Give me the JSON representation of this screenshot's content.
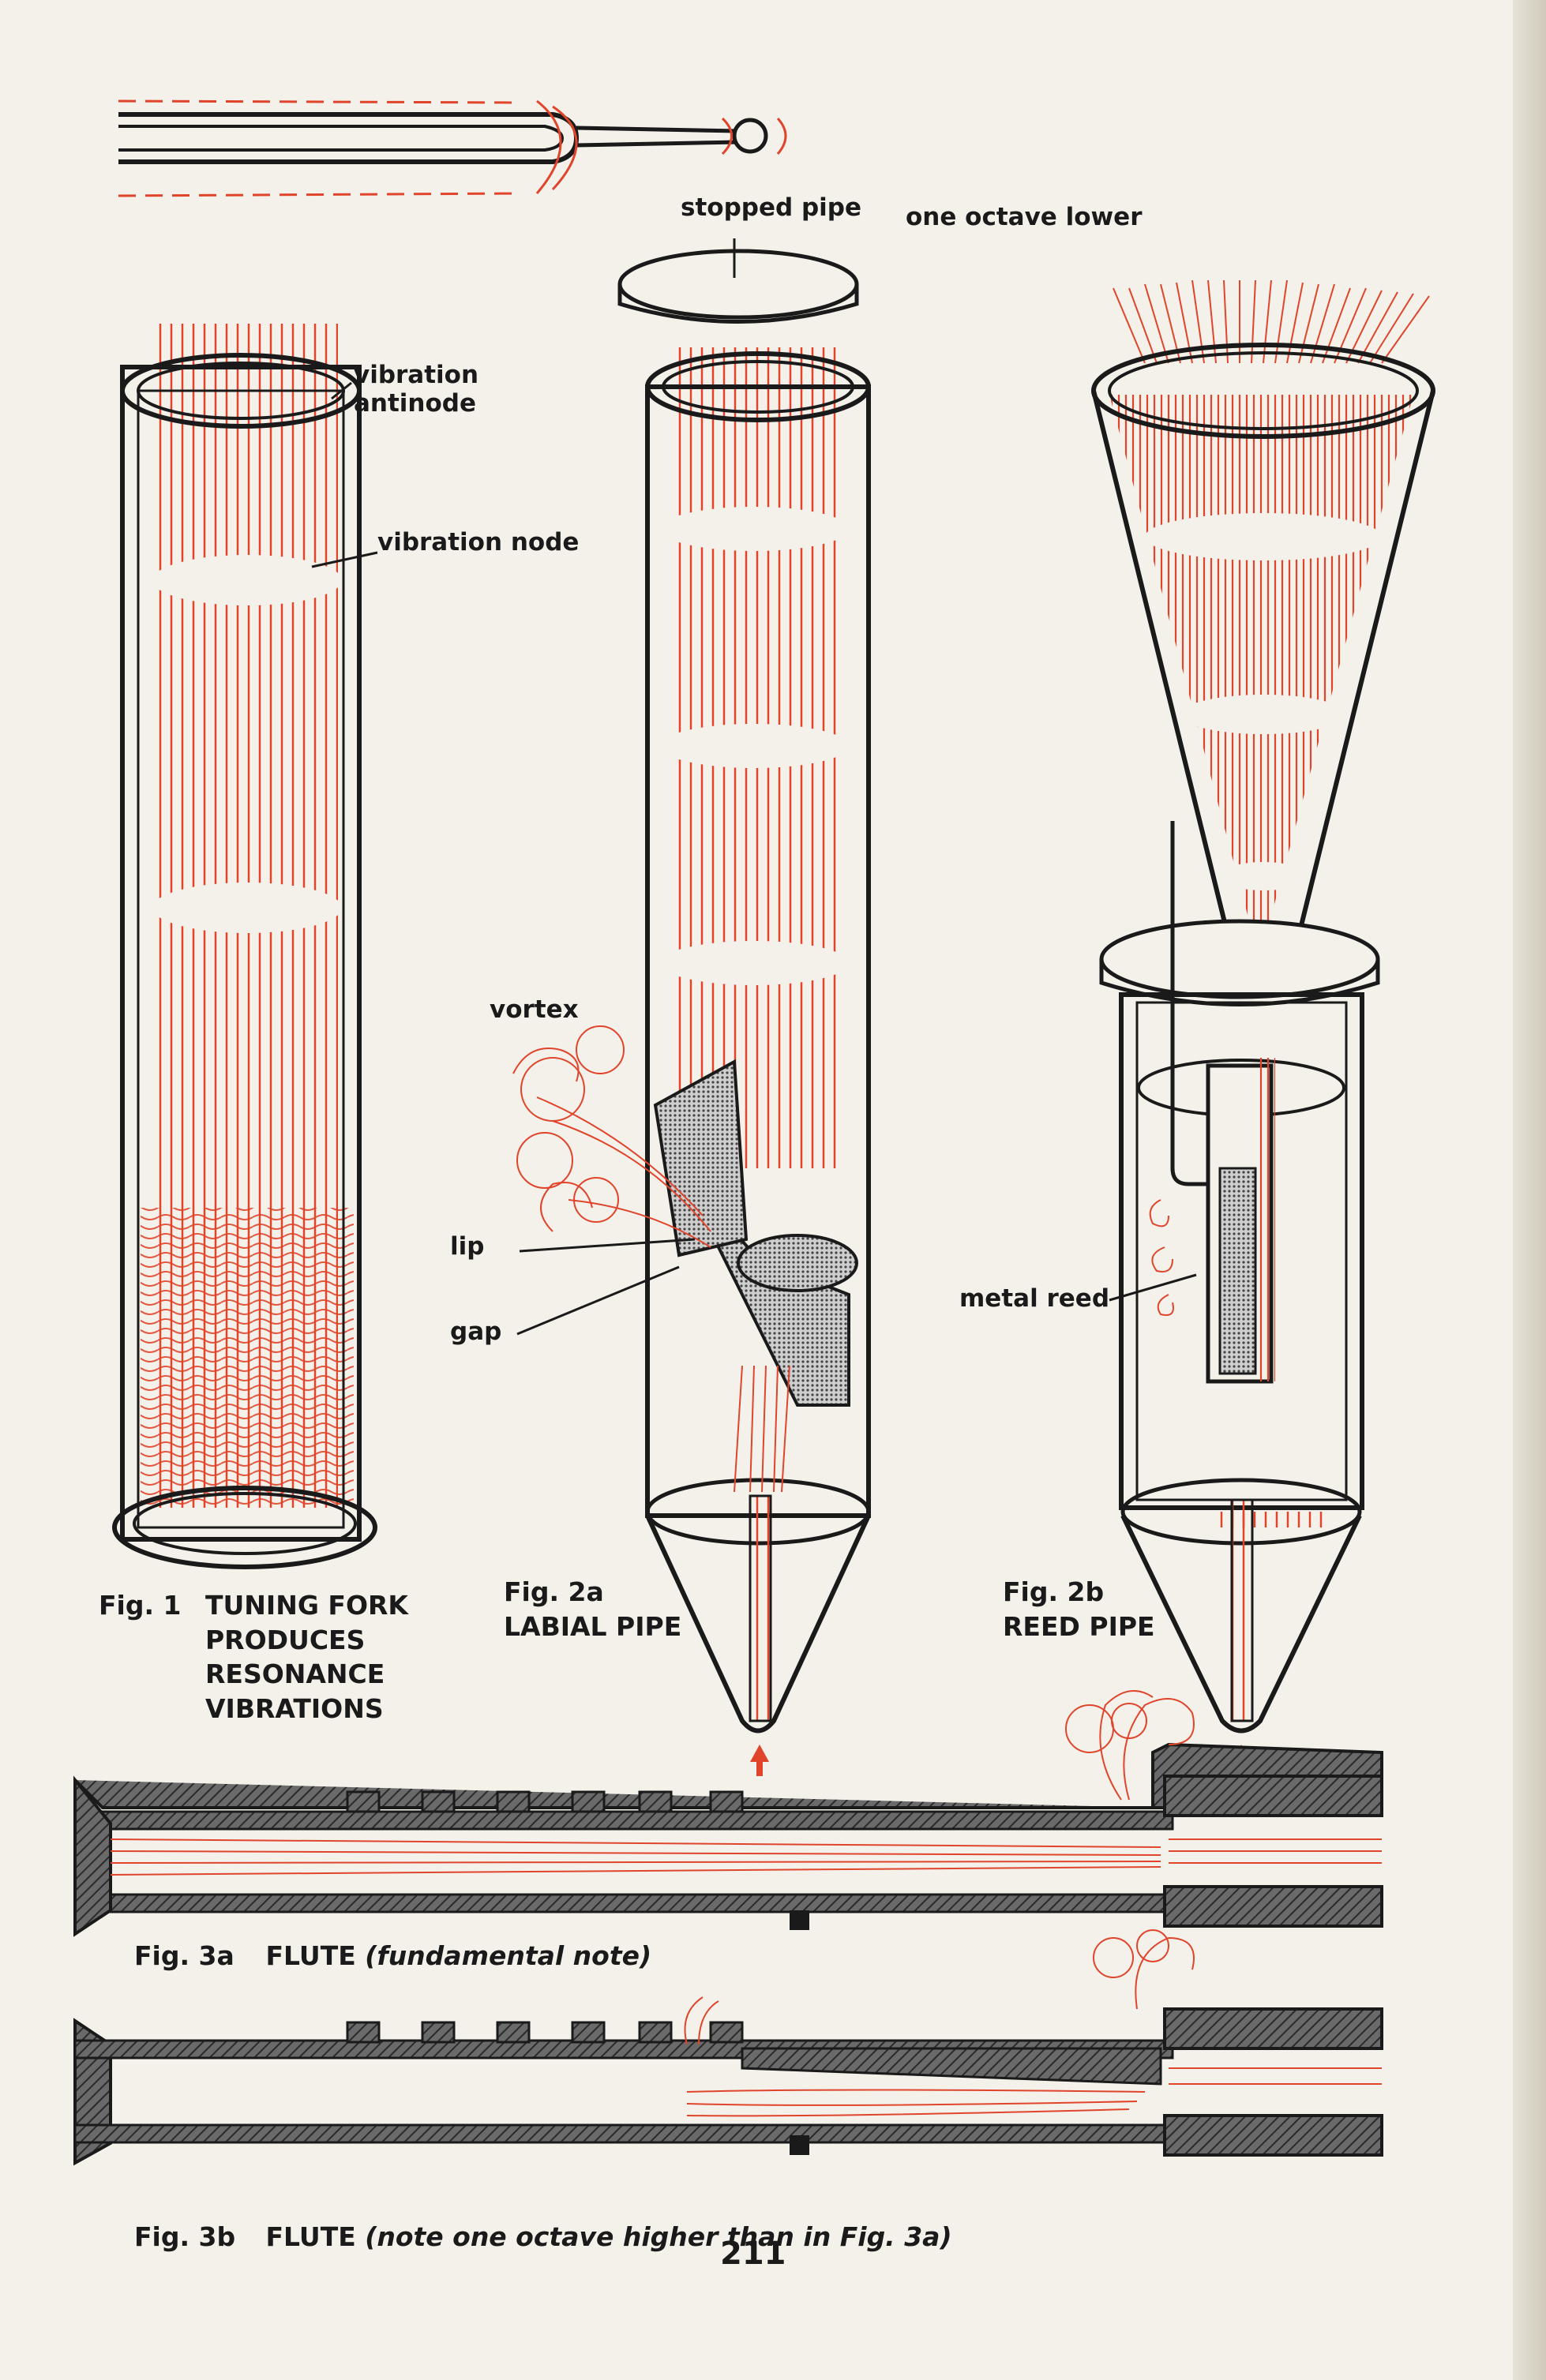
{
  "labels": {
    "stopped_pipe": "stopped pipe",
    "one_octave_lower": "one octave lower",
    "vibration_antinode": "vibration\nantinode",
    "vibration_node": "vibration node",
    "vortex": "vortex",
    "lip": "lip",
    "gap": "gap",
    "metal_reed": "metal reed"
  },
  "captions": {
    "fig1": {
      "num": "Fig. 1",
      "text_lines": [
        "TUNING FORK",
        "PRODUCES",
        "RESONANCE",
        "VIBRATIONS"
      ]
    },
    "fig2a": {
      "num": "Fig. 2a",
      "text": "LABIAL PIPE"
    },
    "fig2b": {
      "num": "Fig. 2b",
      "text": "REED PIPE"
    },
    "fig3a": {
      "num": "Fig. 3a",
      "title": "FLUTE",
      "note": "(fundamental note)"
    },
    "fig3b": {
      "num": "Fig. 3b",
      "title": "FLUTE",
      "note": "(note one octave higher than in Fig. 3a)"
    }
  },
  "page_number": "211",
  "colors": {
    "ink": "#1a1a1a",
    "red": "#e0452c",
    "paper": "#f3f1ea",
    "hatch": "#4a4a4a"
  }
}
